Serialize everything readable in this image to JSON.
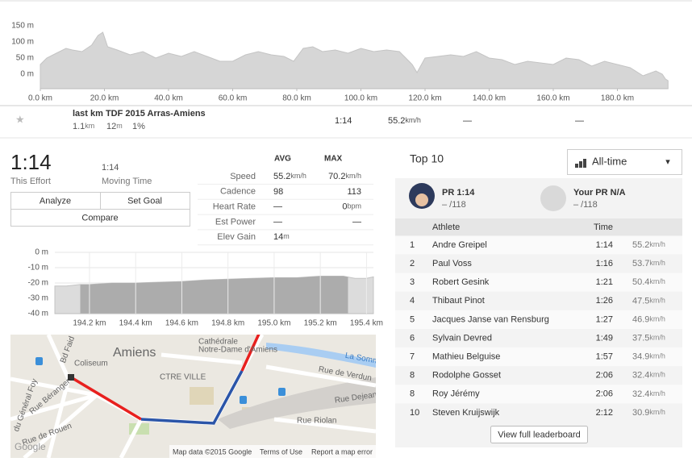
{
  "chart_data": [
    {
      "type": "area",
      "color": "#d6d6d6",
      "grid": false,
      "x": [
        0,
        2,
        5,
        8,
        10,
        13,
        16,
        18,
        19.5,
        21,
        24,
        28,
        32,
        36,
        40,
        44,
        48,
        52,
        56,
        60,
        64,
        68,
        72,
        76,
        79,
        82,
        85,
        88,
        92,
        96,
        100,
        104,
        108,
        112,
        116,
        117.5,
        120,
        124,
        128,
        132,
        136,
        140,
        144,
        148,
        152,
        156,
        160,
        164,
        168,
        172,
        176,
        180,
        184,
        188,
        192,
        194,
        195,
        195.8
      ],
      "values": [
        30,
        50,
        65,
        80,
        75,
        70,
        90,
        120,
        130,
        85,
        75,
        60,
        70,
        50,
        65,
        55,
        70,
        55,
        40,
        40,
        60,
        70,
        60,
        55,
        40,
        80,
        85,
        70,
        75,
        65,
        80,
        70,
        75,
        70,
        30,
        5,
        50,
        55,
        60,
        55,
        70,
        50,
        45,
        30,
        40,
        35,
        30,
        50,
        45,
        25,
        40,
        30,
        20,
        -5,
        10,
        0,
        -15,
        -20
      ],
      "xlim": [
        0,
        195.8
      ],
      "ylim": [
        -45,
        205
      ],
      "xticks": [
        {
          "value": 0,
          "label": "0.0 km"
        },
        {
          "value": 20,
          "label": "20.0 km"
        },
        {
          "value": 40,
          "label": "40.0 km"
        },
        {
          "value": 60,
          "label": "60.0 km"
        },
        {
          "value": 80,
          "label": "80.0 km"
        },
        {
          "value": 100,
          "label": "100.0 km"
        },
        {
          "value": 120,
          "label": "120.0 km"
        },
        {
          "value": 140,
          "label": "140.0 km"
        },
        {
          "value": 160,
          "label": "160.0 km"
        },
        {
          "value": 180,
          "label": "180.0 km"
        }
      ],
      "yticks": [
        {
          "value": 150,
          "label": "150 m"
        },
        {
          "value": 100,
          "label": "100 m"
        },
        {
          "value": 50,
          "label": "50 m"
        },
        {
          "value": 0,
          "label": "0 m"
        }
      ]
    },
    {
      "type": "area",
      "color": "#dcdcdc",
      "highlight_color": "#acacac",
      "grid": true,
      "highlight": [
        194.16,
        195.32
      ],
      "x": [
        194.05,
        194.1,
        194.16,
        194.2,
        194.3,
        194.4,
        194.5,
        194.6,
        194.7,
        194.8,
        194.9,
        195.0,
        195.1,
        195.2,
        195.3,
        195.35,
        195.4,
        195.43
      ],
      "values": [
        -22,
        -22,
        -21,
        -21,
        -20,
        -20,
        -19.5,
        -19,
        -18,
        -17.5,
        -17,
        -16.5,
        -16.5,
        -15.5,
        -15.5,
        -17,
        -17,
        -16
      ],
      "xlim": [
        194.05,
        195.43
      ],
      "ylim": [
        -40,
        0
      ],
      "xticks": [
        {
          "value": 194.2,
          "label": "194.2 km"
        },
        {
          "value": 194.4,
          "label": "194.4 km"
        },
        {
          "value": 194.6,
          "label": "194.6 km"
        },
        {
          "value": 194.8,
          "label": "194.8 km"
        },
        {
          "value": 195.0,
          "label": "195.0 km"
        },
        {
          "value": 195.2,
          "label": "195.2 km"
        },
        {
          "value": 195.4,
          "label": "195.4 km"
        }
      ],
      "yticks": [
        {
          "value": 0,
          "label": "0 m"
        },
        {
          "value": -10,
          "label": "-10 m"
        },
        {
          "value": -20,
          "label": "-20 m"
        },
        {
          "value": -30,
          "label": "-30 m"
        },
        {
          "value": -40,
          "label": "-40 m"
        }
      ]
    }
  ],
  "segment": {
    "star": "★",
    "name": "last km TDF 2015 Arras-Amiens",
    "distance": "1.1",
    "distance_unit": "km",
    "elev_diff": "12",
    "elev_unit": "m",
    "grade": "1%",
    "time": "1:14",
    "speed": "55.2",
    "speed_unit": "km/h",
    "heart_rate": "—",
    "power": "—"
  },
  "effort": {
    "time": "1:14",
    "time_label": "This Effort",
    "moving_time": "1:14",
    "moving_label": "Moving Time",
    "buttons": [
      "Analyze",
      "Set Goal",
      "Compare"
    ]
  },
  "stats": {
    "headers": [
      "AVG",
      "MAX"
    ],
    "rows": [
      {
        "label": "Speed",
        "avg": "55.2",
        "avg_unit": "km/h",
        "max": "70.2",
        "max_unit": "km/h"
      },
      {
        "label": "Cadence",
        "avg": "98",
        "max": "113"
      },
      {
        "label": "Heart Rate",
        "avg": "—",
        "max": "0",
        "max_unit": "bpm"
      },
      {
        "label": "Est Power",
        "avg": "—",
        "max": "—"
      },
      {
        "label": "Elev Gain",
        "avg": "14",
        "avg_unit": "m"
      }
    ]
  },
  "map": {
    "labels": [
      "Amiens",
      "Coliseum",
      "Cathédrale",
      "Notre-Dame d'Amiens",
      "CTRE VILLE",
      "Rue de Verdun",
      "La Somme",
      "Rue Dejean",
      "Rue Riolan",
      "Rue de Rouen",
      "Rue Béranger",
      "du Général Foy",
      "Bd Faid",
      "Google",
      "Map data ©2015 Google",
      "Terms of Use",
      "Report a map error"
    ]
  },
  "leaderboard": {
    "title": "Top 10",
    "filter": "All-time",
    "filter_caret": "▾",
    "pr": {
      "label": "PR 1:14",
      "rank": "– /118"
    },
    "your_pr": {
      "label": "Your PR N/A",
      "rank": "– /118"
    },
    "headers": [
      "Athlete",
      "Time"
    ],
    "rows": [
      {
        "rank": "1",
        "athlete": "Andre Greipel",
        "time": "1:14",
        "speed": "55.2",
        "unit": "km/h"
      },
      {
        "rank": "2",
        "athlete": "Paul Voss",
        "time": "1:16",
        "speed": "53.7",
        "unit": "km/h"
      },
      {
        "rank": "3",
        "athlete": "Robert Gesink",
        "time": "1:21",
        "speed": "50.4",
        "unit": "km/h"
      },
      {
        "rank": "4",
        "athlete": "Thibaut Pinot",
        "time": "1:26",
        "speed": "47.5",
        "unit": "km/h"
      },
      {
        "rank": "5",
        "athlete": "Jacques Janse van Rensburg",
        "time": "1:27",
        "speed": "46.9",
        "unit": "km/h"
      },
      {
        "rank": "6",
        "athlete": "Sylvain Devred",
        "time": "1:49",
        "speed": "37.5",
        "unit": "km/h"
      },
      {
        "rank": "7",
        "athlete": "Mathieu Belguise",
        "time": "1:57",
        "speed": "34.9",
        "unit": "km/h"
      },
      {
        "rank": "8",
        "athlete": "Rodolphe Gosset",
        "time": "2:06",
        "speed": "32.4",
        "unit": "km/h"
      },
      {
        "rank": "8",
        "athlete": "Roy Jérémy",
        "time": "2:06",
        "speed": "32.4",
        "unit": "km/h"
      },
      {
        "rank": "10",
        "athlete": "Steven Kruijswijk",
        "time": "2:12",
        "speed": "30.9",
        "unit": "km/h"
      }
    ],
    "full_button": "View full leaderboard"
  }
}
